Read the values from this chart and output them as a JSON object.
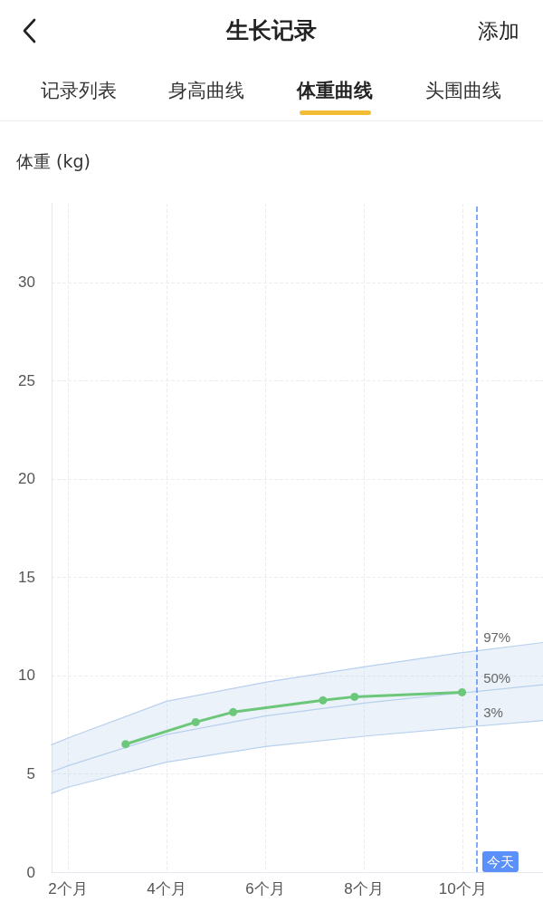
{
  "chart_data": {
    "type": "line",
    "title": "生长记录",
    "ylabel": "体重 (kg)",
    "annotations": [
      "添加",
      "记录列表",
      "身高曲线",
      "体重曲线",
      "头围曲线"
    ],
    "xlim": [
      1.67,
      11.63
    ],
    "xticks": [
      {
        "value": 2,
        "label": "2个月"
      },
      {
        "value": 4,
        "label": "4个月"
      },
      {
        "value": 6,
        "label": "6个月"
      },
      {
        "value": 8,
        "label": "8个月"
      },
      {
        "value": 10,
        "label": "10个月"
      }
    ],
    "ylim": [
      0,
      34
    ],
    "yticks": [
      0,
      5,
      10,
      15,
      20,
      25,
      30
    ],
    "grid": true,
    "marker": "circle",
    "line_style": "solid",
    "ref_lines": [
      {
        "axis": "x",
        "value": 10.29,
        "label": "今天",
        "color": "#5b8ff9",
        "line_style": "dashed"
      }
    ],
    "series": [
      {
        "name": "97%",
        "color": "#b8d0ee",
        "marker": "none",
        "x": [
          1.67,
          2,
          4,
          6,
          8,
          10,
          11.63
        ],
        "values": [
          6.48,
          6.82,
          8.69,
          9.66,
          10.44,
          11.17,
          11.68
        ]
      },
      {
        "name": "50%",
        "color": "#b8d0ee",
        "marker": "none",
        "x": [
          1.67,
          2,
          4,
          6,
          8,
          10,
          11.63
        ],
        "values": [
          5.1,
          5.41,
          7.0,
          7.94,
          8.6,
          9.12,
          9.53
        ],
        "lower": [
          4.0,
          4.32,
          5.59,
          6.39,
          6.91,
          7.36,
          7.71
        ],
        "upper": [
          6.48,
          6.82,
          8.69,
          9.66,
          10.44,
          11.17,
          11.68
        ]
      },
      {
        "name": "3%",
        "color": "#b8d0ee",
        "marker": "none",
        "x": [
          1.67,
          2,
          4,
          6,
          8,
          10,
          11.63
        ],
        "values": [
          4.0,
          4.32,
          5.59,
          6.39,
          6.91,
          7.36,
          7.71
        ]
      },
      {
        "color": "#6cc77a",
        "x": [
          3.17,
          4.59,
          5.35,
          7.17,
          7.81,
          9.99
        ],
        "values": [
          6.51,
          7.63,
          8.14,
          8.74,
          8.92,
          9.15
        ]
      }
    ]
  }
}
